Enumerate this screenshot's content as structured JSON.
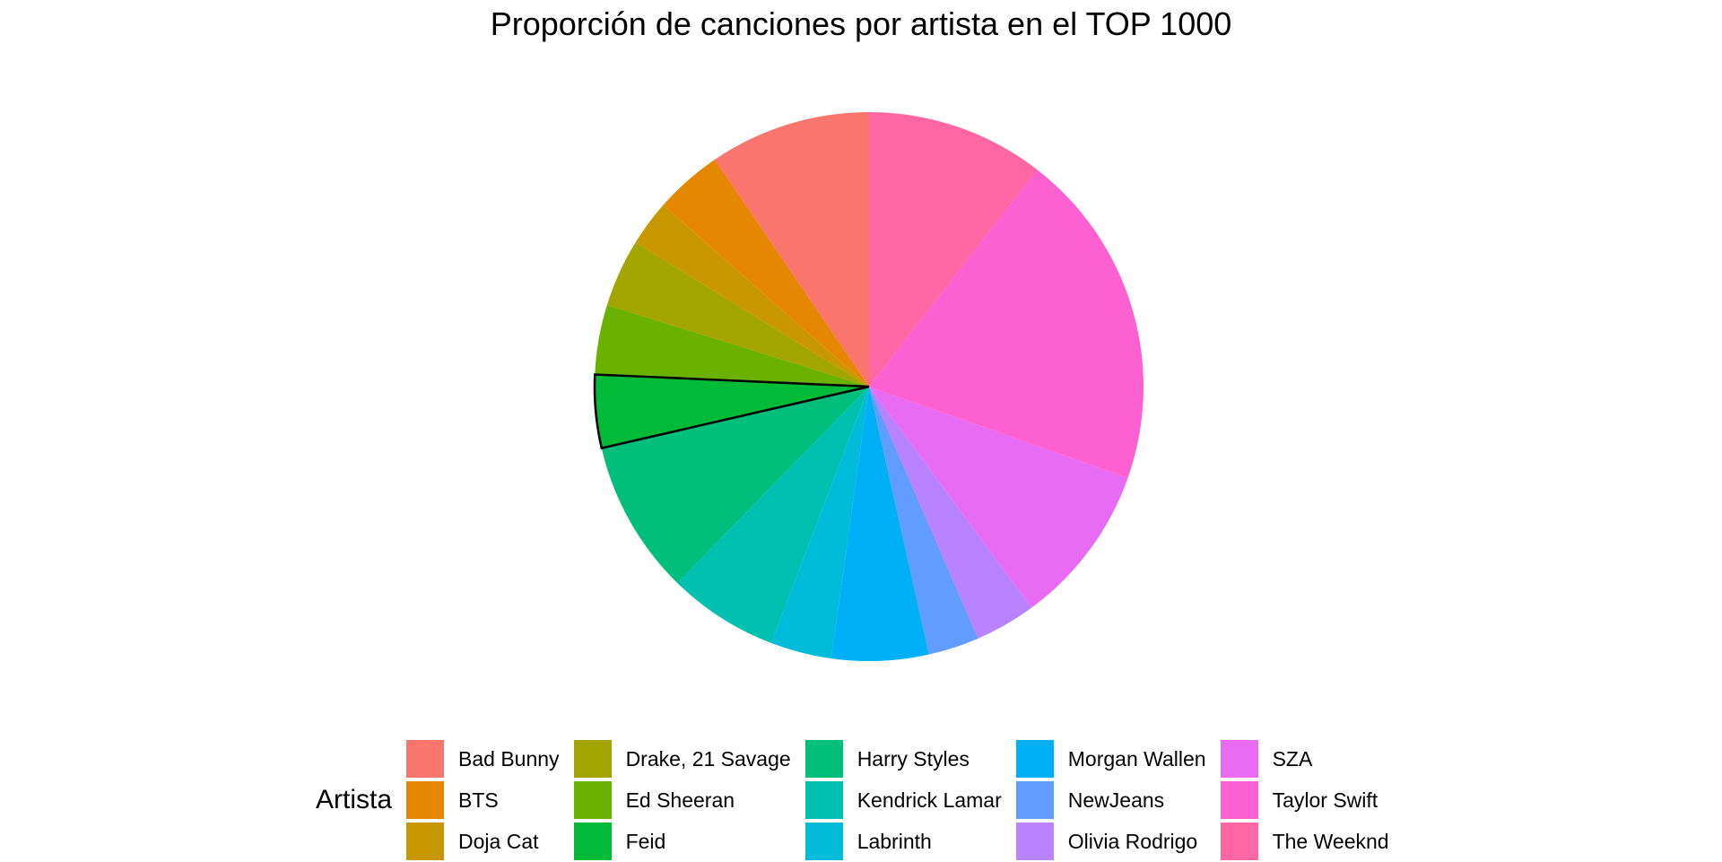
{
  "chart_data": {
    "type": "pie",
    "title": "Proporción de canciones por artista en el TOP 1000",
    "legend_title": "Artista",
    "legend_position": "bottom",
    "highlighted": "Feid",
    "slices": [
      {
        "label": "Bad Bunny",
        "value": 9.5,
        "color": "#F8766D"
      },
      {
        "label": "BTS",
        "value": 4.0,
        "color": "#E58700"
      },
      {
        "label": "Doja Cat",
        "value": 2.7,
        "color": "#C99800"
      },
      {
        "label": "Drake, 21 Savage",
        "value": 4.0,
        "color": "#A3A500"
      },
      {
        "label": "Ed Sheeran",
        "value": 4.1,
        "color": "#6BB100"
      },
      {
        "label": "Feid",
        "value": 4.3,
        "color": "#00BA38"
      },
      {
        "label": "Harry Styles",
        "value": 9.1,
        "color": "#00BF7D"
      },
      {
        "label": "Kendrick Lamar",
        "value": 6.5,
        "color": "#00C0AF"
      },
      {
        "label": "Labrinth",
        "value": 3.6,
        "color": "#00BCD8"
      },
      {
        "label": "Morgan Wallen",
        "value": 5.7,
        "color": "#00B0F6"
      },
      {
        "label": "NewJeans",
        "value": 3.0,
        "color": "#619CFF"
      },
      {
        "label": "Olivia Rodrigo",
        "value": 3.6,
        "color": "#B983FF"
      },
      {
        "label": "SZA",
        "value": 9.5,
        "color": "#E76BF3"
      },
      {
        "label": "Taylor Swift",
        "value": 19.9,
        "color": "#FD61D1"
      },
      {
        "label": "The Weeknd",
        "value": 10.5,
        "color": "#FF67A4"
      }
    ]
  }
}
